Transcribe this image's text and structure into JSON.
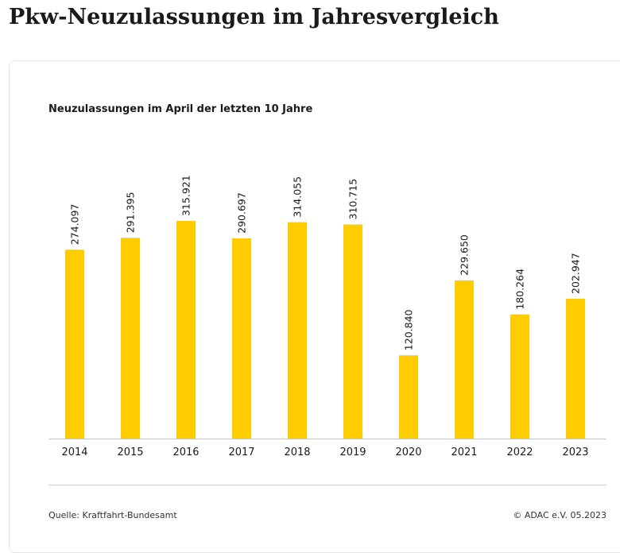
{
  "page": {
    "title": "Pkw-Neuzulassungen im Jahresvergleich"
  },
  "chart_data": {
    "type": "bar",
    "title": "Neuzulassungen im April der letzten 10 Jahre",
    "categories": [
      "2014",
      "2015",
      "2016",
      "2017",
      "2018",
      "2019",
      "2020",
      "2021",
      "2022",
      "2023"
    ],
    "values": [
      274097,
      291395,
      315921,
      290697,
      314055,
      310715,
      120840,
      229650,
      180264,
      202947
    ],
    "data_labels": [
      "274.097",
      "291.395",
      "315.921",
      "290.697",
      "314.055",
      "310.715",
      "120.840",
      "229.650",
      "180.264",
      "202.947"
    ],
    "xlabel": "",
    "ylabel": "",
    "ylim": [
      0,
      325000
    ],
    "grid": false,
    "legend": "none",
    "colors": {
      "bar": "#ffcc00",
      "axis": "#c8c8c8",
      "text": "#1a1a1a"
    }
  },
  "footer": {
    "source": "Quelle: Kraftfahrt-Bundesamt",
    "copyright": "© ADAC e.V. 05.2023"
  }
}
